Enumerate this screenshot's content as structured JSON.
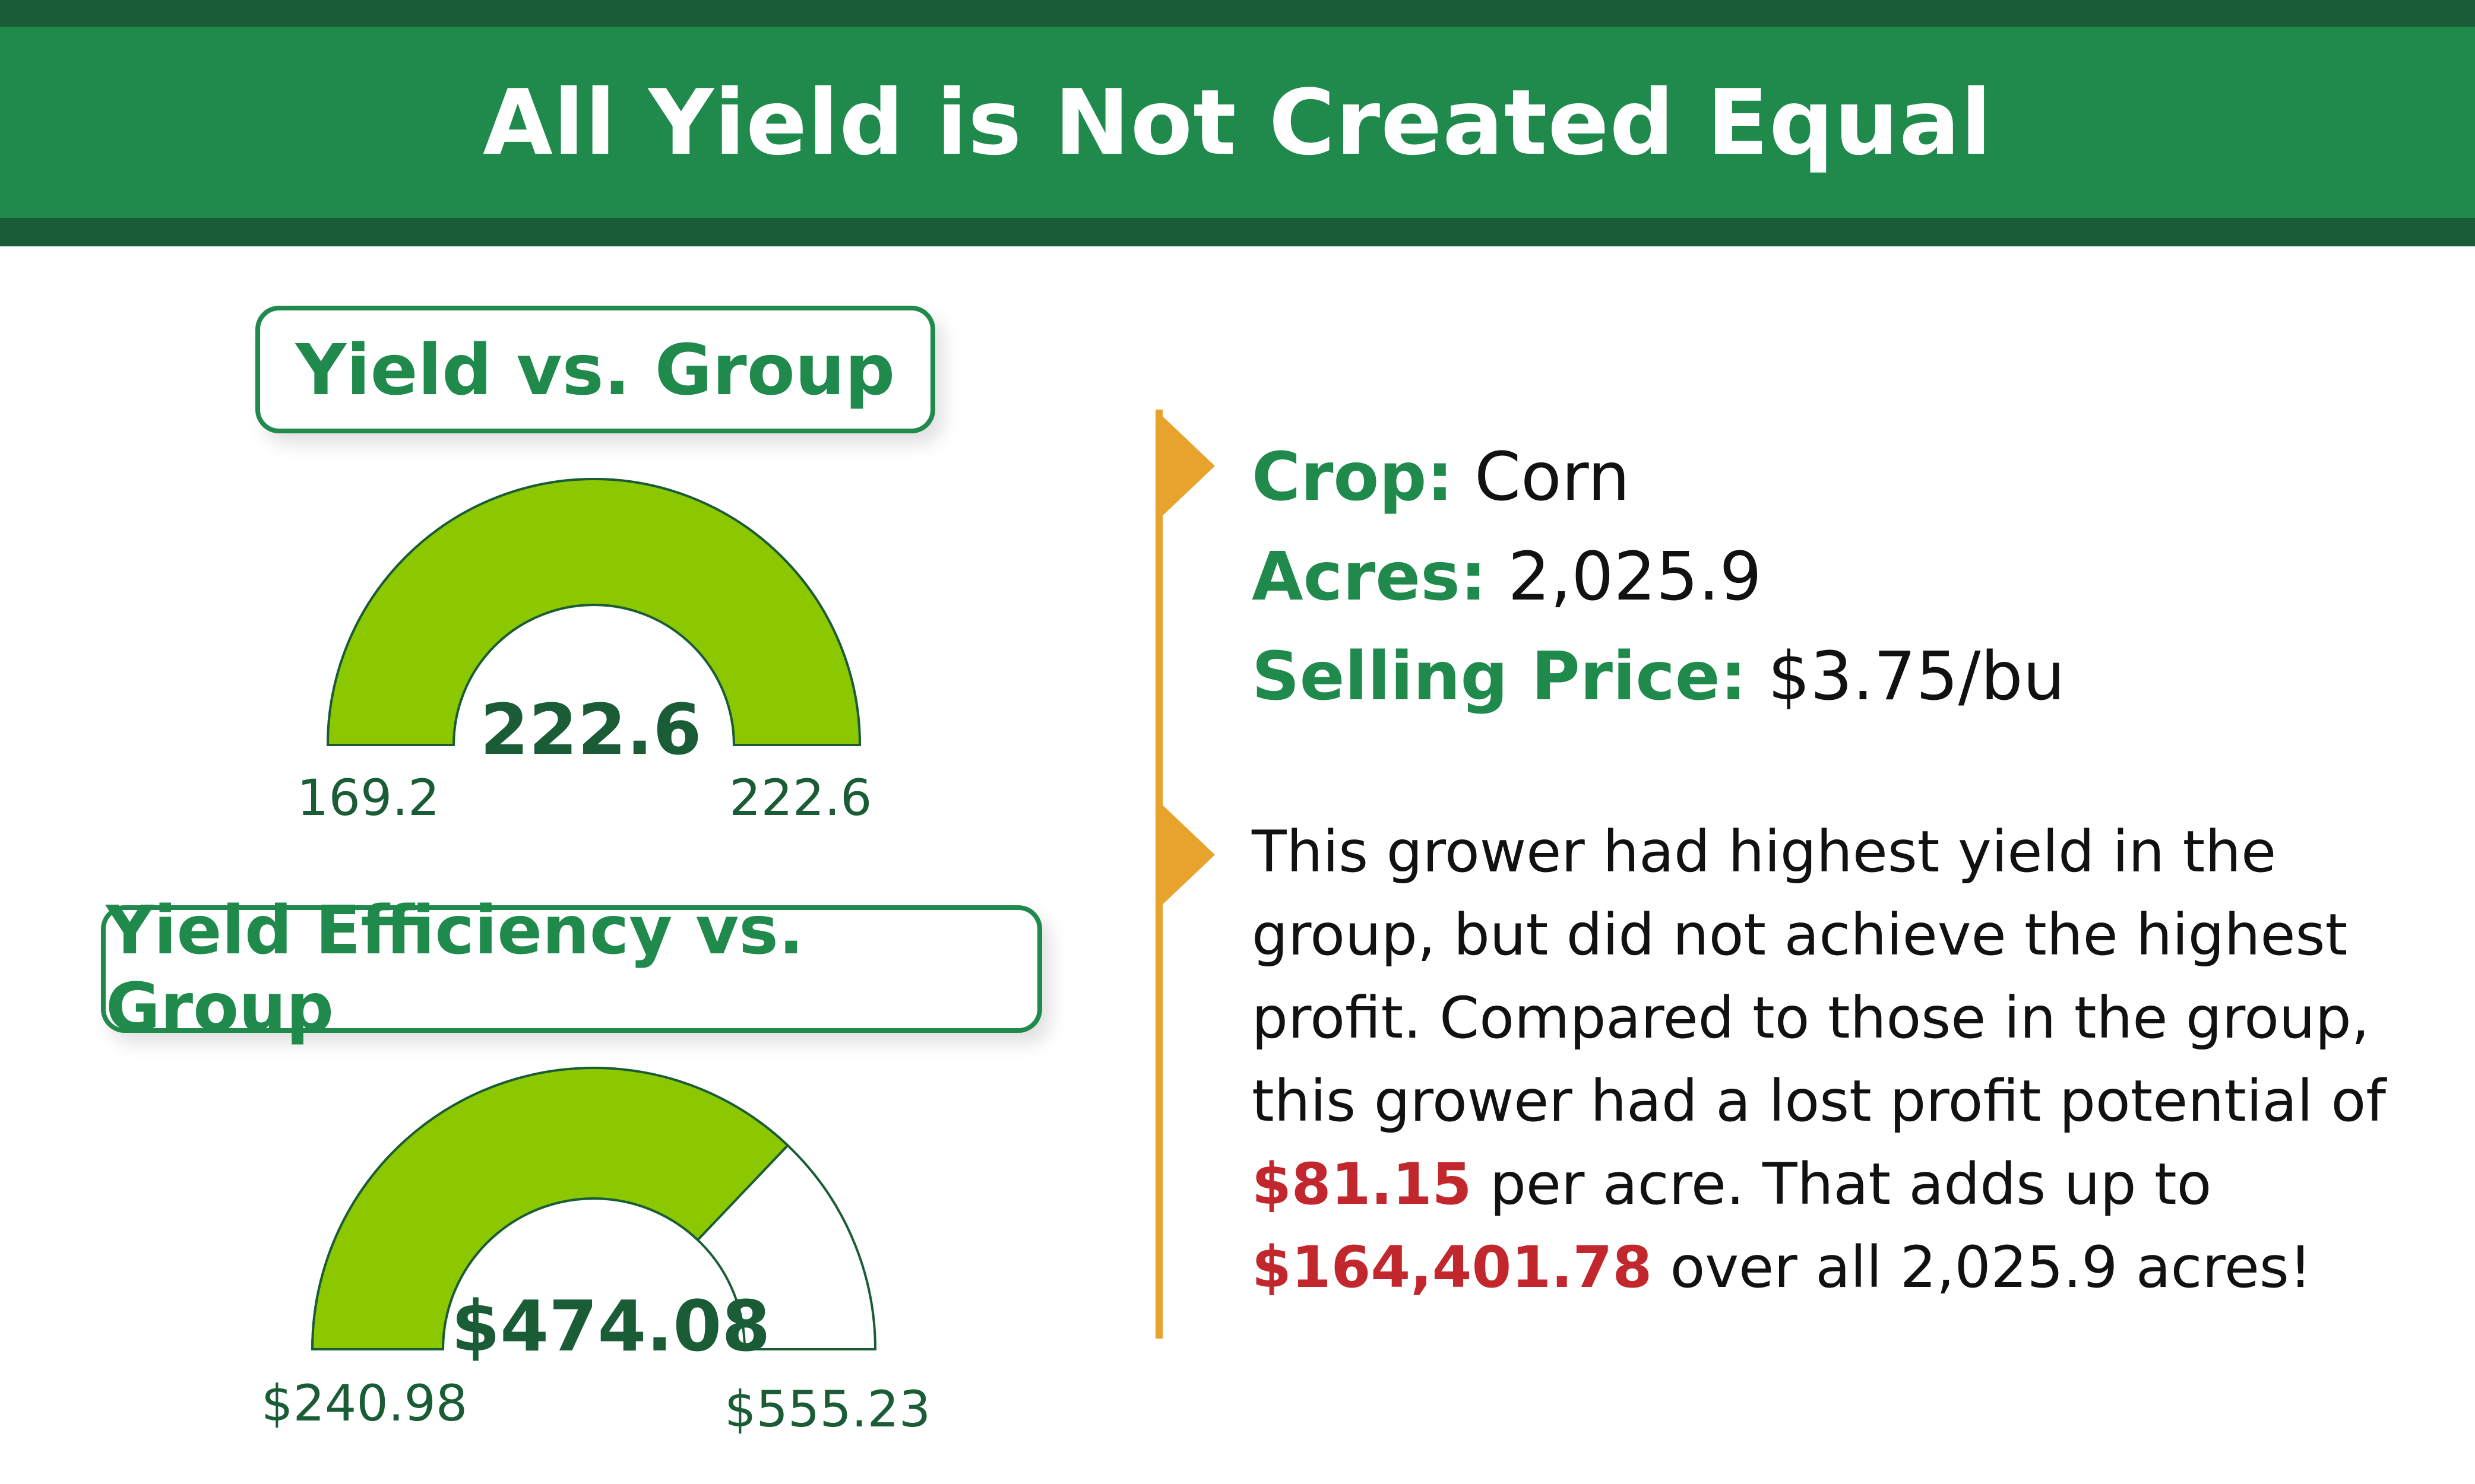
{
  "header": {
    "title": "All Yield is Not Created Equal"
  },
  "colors": {
    "brand_green": "#1f8a4c",
    "dark_green": "#1a5c36",
    "gauge_fill": "#8cc800",
    "accent_orange": "#e8a32d",
    "alert_red": "#c1272d"
  },
  "gauges": [
    {
      "label": "Yield vs. Group",
      "value_text": "222.6",
      "min_text": "169.2",
      "max_text": "222.6",
      "value": 222.6,
      "min": 169.2,
      "max": 222.6,
      "fill_fraction": 1.0
    },
    {
      "label": "Yield Efficiency vs. Group",
      "value_text": "$474.08",
      "min_text": "$240.98",
      "max_text": "$555.23",
      "value": 474.08,
      "min": 240.98,
      "max": 555.23,
      "fill_fraction": 0.742
    }
  ],
  "info": {
    "crop_label": "Crop:",
    "crop_value": "Corn",
    "acres_label": "Acres:",
    "acres_value": "2,025.9",
    "price_label": "Selling Price:",
    "price_value": "$3.75/bu"
  },
  "summary": {
    "part1": "This grower had highest yield in the group, but did not achieve the highest profit. Compared to those in the group, this grower had a lost profit potential of ",
    "lost_per_acre": "$81.15",
    "part2": " per acre. That adds up to ",
    "lost_total": "$164,401.78",
    "part3": " over all 2,025.9 acres!"
  }
}
